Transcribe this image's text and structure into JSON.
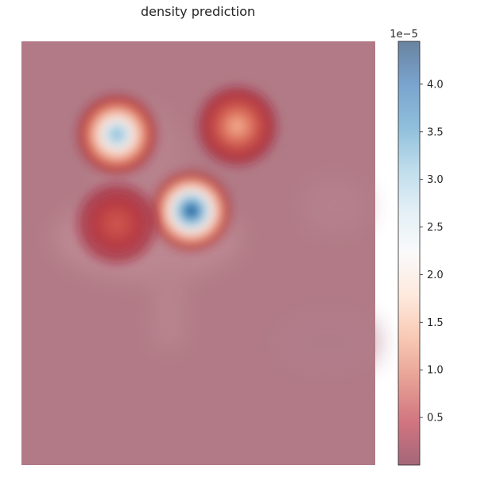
{
  "chart_data": {
    "type": "heatmap",
    "title": "density prediction",
    "xlabel": "",
    "ylabel": "",
    "colormap": "RdBu",
    "colormap_alpha": 0.5,
    "colorbar": {
      "offset_label": "1e−5",
      "range": [
        0.0,
        4.45
      ],
      "ticks": [
        0.5,
        1.0,
        1.5,
        2.0,
        2.5,
        3.0,
        3.5,
        4.0
      ],
      "tick_labels": [
        "0.5",
        "1.0",
        "1.5",
        "2.0",
        "2.5",
        "3.0",
        "3.5",
        "4.0"
      ]
    },
    "hotspots": [
      {
        "x": 0.27,
        "y": 0.22,
        "peak": 3.5
      },
      {
        "x": 0.48,
        "y": 0.4,
        "peak": 4.4
      },
      {
        "x": 0.61,
        "y": 0.2,
        "peak": 1.7
      },
      {
        "x": 0.27,
        "y": 0.43,
        "peak": 1.1
      }
    ],
    "grid": false,
    "axes_visible": false
  },
  "colors": {
    "low": "#67001f",
    "mid": "#f7f7f7",
    "high": "#053061"
  }
}
